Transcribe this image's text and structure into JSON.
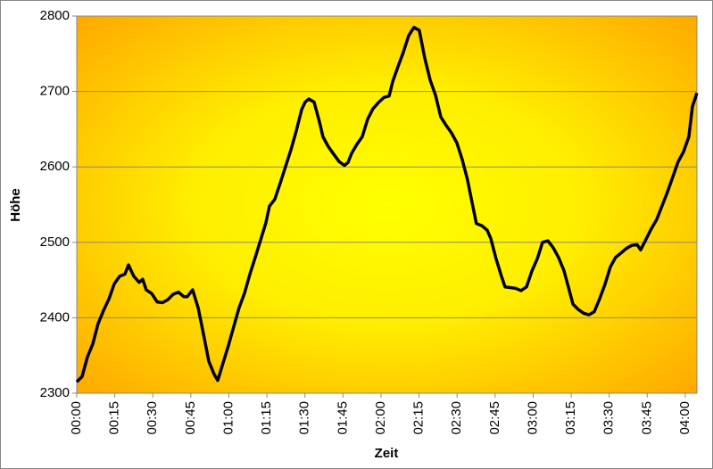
{
  "chart_data": {
    "type": "line",
    "x_label": "Zeit",
    "y_label": "Höhe",
    "color": "#000000",
    "grid": true,
    "x": [
      0,
      2.1,
      4.2,
      6.3,
      8.4,
      10.6,
      12.7,
      14.8,
      16.9,
      19.0,
      20.4,
      22.5,
      24.6,
      26.0,
      27.4,
      29.6,
      31.7,
      33.8,
      35.9,
      38.0,
      40.1,
      42.2,
      43.6,
      45.7,
      47.9,
      50.0,
      52.1,
      54.2,
      55.6,
      57.7,
      59.8,
      61.9,
      64.0,
      66.2,
      68.3,
      70.4,
      72.5,
      74.6,
      76.0,
      78.1,
      80.2,
      82.3,
      84.5,
      86.6,
      88.7,
      90.1,
      91.5,
      93.6,
      95.7,
      97.1,
      99.2,
      101.3,
      103.5,
      105.6,
      107.0,
      108.4,
      110.5,
      112.6,
      114.7,
      116.8,
      118.9,
      121.1,
      123.2,
      124.6,
      126.7,
      128.8,
      130.9,
      133.0,
      135.1,
      137.2,
      139.4,
      141.5,
      143.6,
      145.7,
      147.8,
      149.9,
      152.0,
      154.1,
      156.2,
      157.6,
      159.8,
      161.9,
      163.3,
      165.4,
      167.5,
      168.9,
      171.0,
      173.1,
      175.2,
      177.4,
      179.5,
      181.6,
      183.7,
      185.8,
      187.9,
      190.0,
      192.1,
      194.2,
      195.7,
      197.8,
      199.9,
      202.0,
      204.1,
      206.2,
      208.3,
      210.4,
      212.5,
      214.7,
      216.8,
      218.9,
      221.0,
      222.4,
      224.5,
      226.6,
      228.7,
      230.8,
      233.0,
      235.1,
      237.2,
      239.3,
      241.4,
      242.8,
      244.6
    ],
    "values": [
      2315,
      2322,
      2348,
      2365,
      2392,
      2410,
      2425,
      2445,
      2455,
      2458,
      2470,
      2455,
      2447,
      2451,
      2437,
      2432,
      2421,
      2420,
      2424,
      2431,
      2434,
      2428,
      2428,
      2437,
      2413,
      2378,
      2342,
      2325,
      2317,
      2340,
      2363,
      2388,
      2413,
      2433,
      2458,
      2480,
      2503,
      2526,
      2548,
      2557,
      2578,
      2600,
      2623,
      2648,
      2676,
      2686,
      2690,
      2686,
      2660,
      2640,
      2627,
      2617,
      2607,
      2602,
      2606,
      2618,
      2630,
      2640,
      2663,
      2677,
      2685,
      2692,
      2694,
      2713,
      2733,
      2752,
      2774,
      2785,
      2781,
      2745,
      2715,
      2695,
      2666,
      2655,
      2645,
      2632,
      2610,
      2583,
      2548,
      2525,
      2522,
      2516,
      2505,
      2478,
      2455,
      2441,
      2440,
      2439,
      2436,
      2441,
      2462,
      2478,
      2500,
      2502,
      2493,
      2480,
      2463,
      2437,
      2418,
      2411,
      2406,
      2404,
      2408,
      2425,
      2444,
      2467,
      2480,
      2486,
      2492,
      2496,
      2497,
      2490,
      2504,
      2518,
      2530,
      2548,
      2567,
      2587,
      2607,
      2620,
      2640,
      2680,
      2698
    ],
    "xlim": [
      0,
      244.6
    ],
    "xticks": [
      {
        "value": 0,
        "label": "00:00"
      },
      {
        "value": 15,
        "label": "00:15"
      },
      {
        "value": 30,
        "label": "00:30"
      },
      {
        "value": 45,
        "label": "00:45"
      },
      {
        "value": 60,
        "label": "01:00"
      },
      {
        "value": 75,
        "label": "01:15"
      },
      {
        "value": 90,
        "label": "01:30"
      },
      {
        "value": 105,
        "label": "01:45"
      },
      {
        "value": 120,
        "label": "02:00"
      },
      {
        "value": 135,
        "label": "02:15"
      },
      {
        "value": 150,
        "label": "02:30"
      },
      {
        "value": 165,
        "label": "02:45"
      },
      {
        "value": 180,
        "label": "03:00"
      },
      {
        "value": 195,
        "label": "03:15"
      },
      {
        "value": 210,
        "label": "03:30"
      },
      {
        "value": 225,
        "label": "03:45"
      },
      {
        "value": 240,
        "label": "04:00"
      }
    ],
    "ylim": [
      2300,
      2800
    ],
    "yticks": [
      2300,
      2400,
      2500,
      2600,
      2700,
      2800
    ]
  }
}
